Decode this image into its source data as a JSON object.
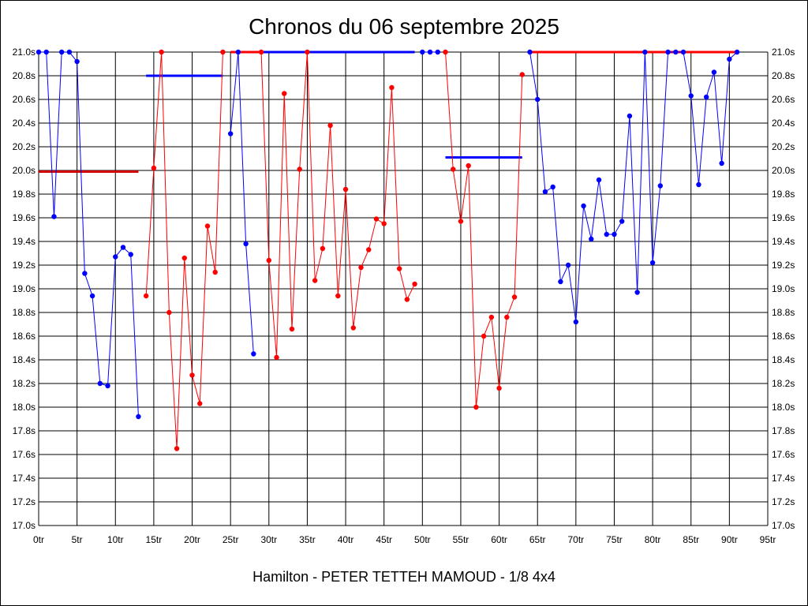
{
  "chart_data": {
    "type": "line",
    "title": "Chronos du 06 septembre 2025",
    "footer": "Hamilton - PETER TETTEH MAMOUD - 1/8 4x4",
    "xlabel": "",
    "ylabel": "",
    "xlim": [
      0,
      95
    ],
    "ylim": [
      17.0,
      21.0
    ],
    "x_ticks": [
      0,
      5,
      10,
      15,
      20,
      25,
      30,
      35,
      40,
      45,
      50,
      55,
      60,
      65,
      70,
      75,
      80,
      85,
      90,
      95
    ],
    "x_tick_suffix": "tr",
    "y_ticks": [
      17.0,
      17.2,
      17.4,
      17.6,
      17.8,
      18.0,
      18.2,
      18.4,
      18.6,
      18.8,
      19.0,
      19.2,
      19.4,
      19.6,
      19.8,
      20.0,
      20.2,
      20.4,
      20.6,
      20.8,
      21.0
    ],
    "y_tick_suffix": "s",
    "grid": true,
    "series": [
      {
        "color": "#0000ff",
        "x": [
          0,
          1,
          2,
          3,
          4,
          5,
          6,
          7,
          8,
          9,
          10,
          11,
          12,
          13
        ],
        "y": [
          21.0,
          21.0,
          19.61,
          21.0,
          21.0,
          20.92,
          19.13,
          18.94,
          18.2,
          18.18,
          19.27,
          19.35,
          19.29,
          17.92
        ]
      },
      {
        "color": "#ff0000",
        "x": [
          14,
          15,
          16,
          17,
          18,
          19,
          20,
          21,
          22,
          23,
          24
        ],
        "y": [
          18.94,
          20.02,
          21.0,
          18.8,
          17.65,
          19.26,
          18.27,
          18.03,
          19.53,
          19.14,
          21.0
        ]
      },
      {
        "color": "#0000ff",
        "x": [
          25,
          26,
          27,
          28
        ],
        "y": [
          20.31,
          21.0,
          19.38,
          18.45
        ]
      },
      {
        "color": "#ff0000",
        "x": [
          29,
          30,
          31,
          32,
          33,
          34,
          35,
          36,
          37,
          38,
          39,
          40,
          41,
          42,
          43,
          44,
          45,
          46,
          47,
          48,
          49
        ],
        "y": [
          21.0,
          19.24,
          18.42,
          20.65,
          18.66,
          20.01,
          21.0,
          19.07,
          19.34,
          20.38,
          18.94,
          19.84,
          18.67,
          19.18,
          19.33,
          19.59,
          19.55,
          20.7,
          19.17,
          18.91,
          19.04
        ]
      },
      {
        "color": "#0000ff",
        "x": [
          50,
          51,
          52
        ],
        "y": [
          21.0,
          21.0,
          21.0
        ]
      },
      {
        "color": "#ff0000",
        "x": [
          53,
          54,
          55,
          56,
          57,
          58,
          59,
          60,
          61,
          62,
          63
        ],
        "y": [
          21.0,
          20.01,
          19.57,
          20.04,
          18.0,
          18.6,
          18.76,
          18.16,
          18.76,
          18.93,
          20.81
        ]
      },
      {
        "color": "#0000ff",
        "x": [
          64,
          65,
          66,
          67,
          68,
          69,
          70,
          71,
          72,
          73,
          74,
          75,
          76,
          77,
          78,
          79,
          80,
          81,
          82,
          83,
          84,
          85,
          86,
          87,
          88,
          89,
          90,
          91
        ],
        "y": [
          21.0,
          20.6,
          19.82,
          19.86,
          19.06,
          19.2,
          18.72,
          19.7,
          19.42,
          19.92,
          19.46,
          19.46,
          19.57,
          20.46,
          18.97,
          21.0,
          19.22,
          19.87,
          21.0,
          21.0,
          21.0,
          20.63,
          19.88,
          20.62,
          20.83,
          20.06,
          20.94,
          21.0
        ]
      }
    ],
    "reference_lines": [
      {
        "color": "#d00000",
        "x": [
          0,
          13
        ],
        "y": 19.99
      },
      {
        "color": "#0000ff",
        "x": [
          14,
          24
        ],
        "y": 20.8
      },
      {
        "color": "#ff0000",
        "x": [
          25,
          29
        ],
        "y": 21.0
      },
      {
        "color": "#0000ff",
        "x": [
          29,
          49
        ],
        "y": 21.0
      },
      {
        "color": "#0000ff",
        "x": [
          53,
          63
        ],
        "y": 20.11
      },
      {
        "color": "#ff0000",
        "x": [
          64,
          91
        ],
        "y": 21.0
      }
    ]
  }
}
